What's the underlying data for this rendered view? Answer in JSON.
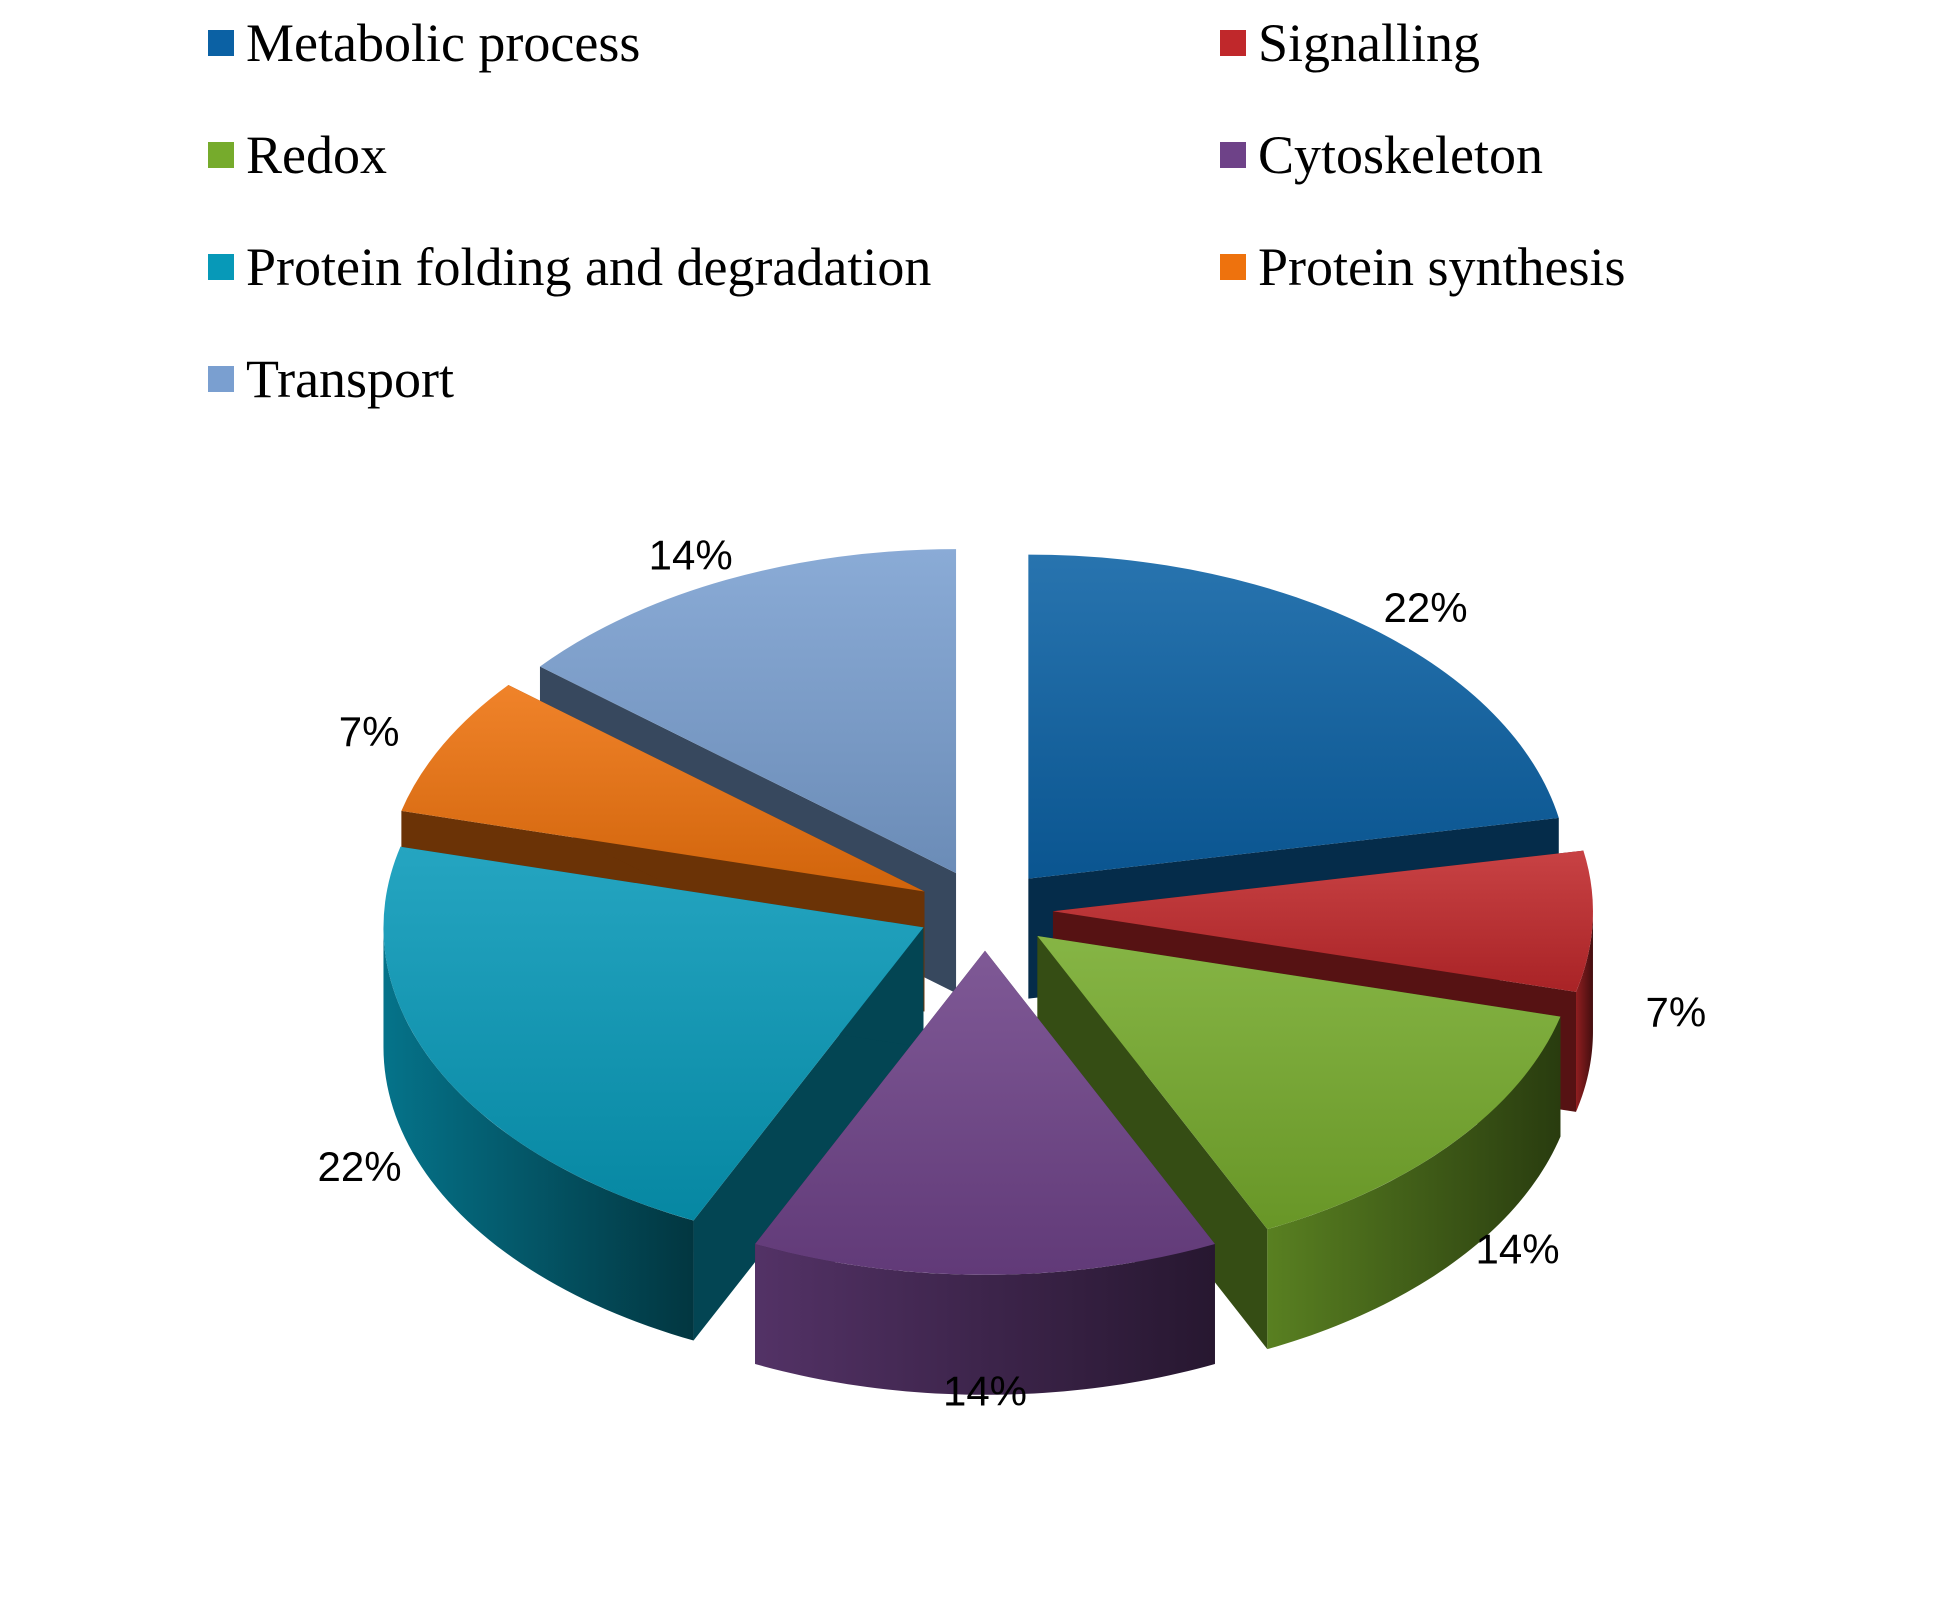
{
  "chart_data": {
    "type": "pie",
    "title": "",
    "value_format": "percent",
    "legend_position": "top",
    "exploded": true,
    "three_d": true,
    "slices": [
      {
        "name": "Metabolic process",
        "value": 22,
        "label": "22%",
        "color": "#0b61a4"
      },
      {
        "name": "Signalling",
        "value": 7,
        "label": "7%",
        "color": "#c0282b"
      },
      {
        "name": "Redox",
        "value": 14,
        "label": "14%",
        "color": "#76ab2c"
      },
      {
        "name": "Cytoskeleton",
        "value": 14,
        "label": "14%",
        "color": "#6e4288"
      },
      {
        "name": "Protein folding and degradation",
        "value": 22,
        "label": "22%",
        "color": "#0799b8"
      },
      {
        "name": "Protein synthesis",
        "value": 7,
        "label": "7%",
        "color": "#ee720d"
      },
      {
        "name": "Transport",
        "value": 14,
        "label": "14%",
        "color": "#7a9fd0"
      }
    ]
  }
}
